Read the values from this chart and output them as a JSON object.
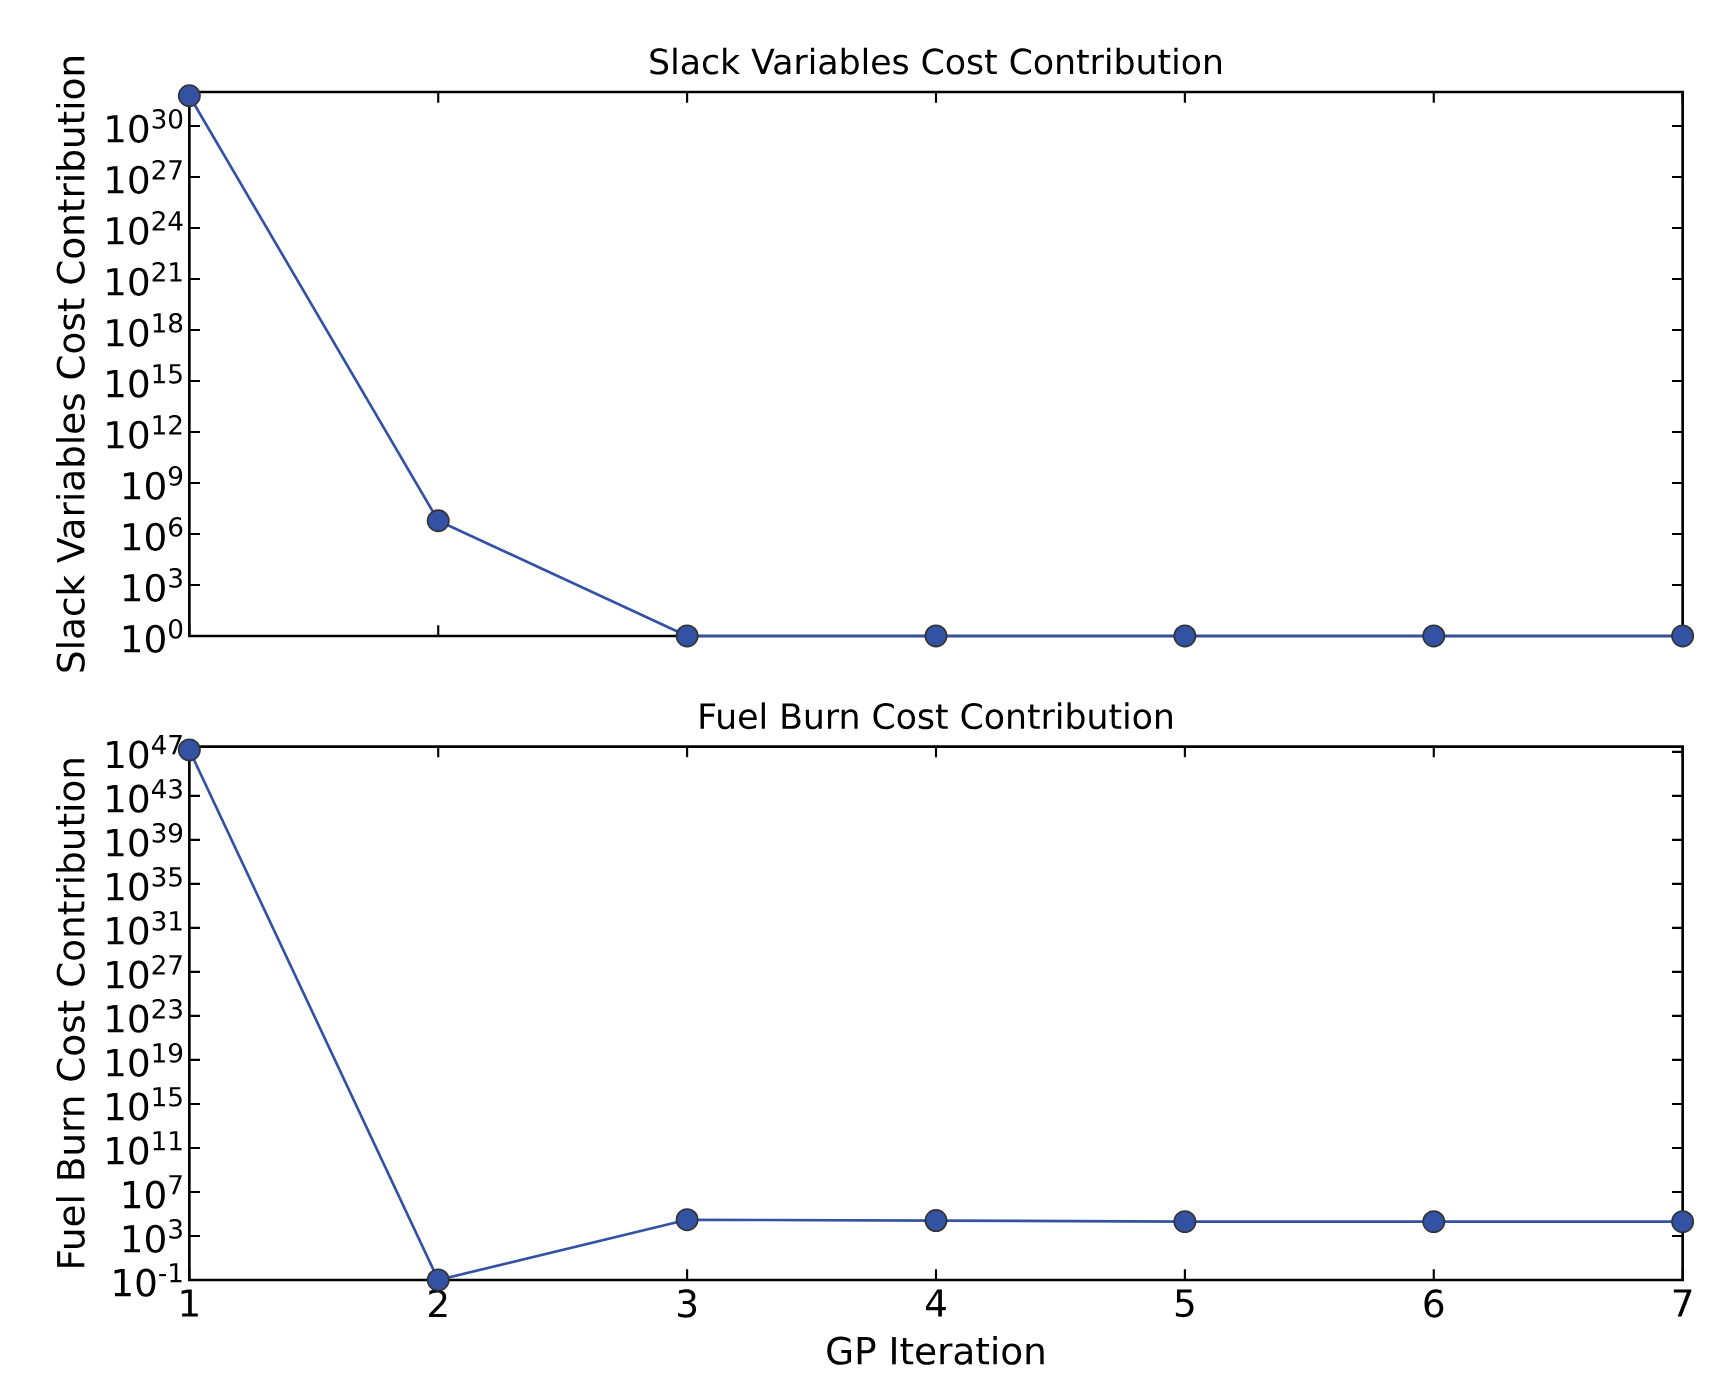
{
  "chart_data": [
    {
      "type": "line",
      "title": "Slack Variables Cost Contribution",
      "ylabel": "Slack Variables Cost Contribution",
      "x": [
        1,
        2,
        3,
        4,
        5,
        6,
        7
      ],
      "series": [
        {
          "color": "#3452a4",
          "values": [
            6e+31,
            6000000.0,
            1,
            1,
            1,
            1,
            1
          ]
        }
      ],
      "log": "y",
      "grid": false,
      "marker": "circle",
      "line_style": "solid",
      "tick_labels": "y",
      "xlim": [
        1,
        7
      ],
      "xticks": [
        1,
        2,
        3,
        4,
        5,
        6,
        7
      ],
      "ylim": [
        1,
        1e+32
      ],
      "yticks": [
        {
          "value": 1,
          "label": "10$^{0}$"
        },
        {
          "value": 1000.0,
          "label": "10$^{3}$"
        },
        {
          "value": 1000000.0,
          "label": "10$^{6}$"
        },
        {
          "value": 1000000000.0,
          "label": "10$^{9}$"
        },
        {
          "value": 1000000000000.0,
          "label": "10$^{12}$"
        },
        {
          "value": 1000000000000000.0,
          "label": "10$^{15}$"
        },
        {
          "value": 1e+18,
          "label": "10$^{18}$"
        },
        {
          "value": 1e+21,
          "label": "10$^{21}$"
        },
        {
          "value": 1e+24,
          "label": "10$^{24}$"
        },
        {
          "value": 1e+27,
          "label": "10$^{27}$"
        },
        {
          "value": 1e+30,
          "label": "10$^{30}$"
        }
      ]
    },
    {
      "type": "line",
      "title": "Fuel Burn Cost Contribution",
      "xlabel": "GP Iteration",
      "ylabel": "Fuel Burn Cost Contribution",
      "x": [
        1,
        2,
        3,
        4,
        5,
        6,
        7
      ],
      "series": [
        {
          "color": "#3452a4",
          "values": [
            1.5e+47,
            0.1,
            30000.0,
            25000.0,
            20000.0,
            20000.0,
            20000.0
          ]
        }
      ],
      "log": "y",
      "grid": false,
      "marker": "circle",
      "line_style": "solid",
      "xlim": [
        1,
        7
      ],
      "xticks": [
        1,
        2,
        3,
        4,
        5,
        6,
        7
      ],
      "ylim": [
        0.1,
        3e+47
      ],
      "yticks": [
        {
          "value": 0.1,
          "label": "10$^{-1}$"
        },
        {
          "value": 1000.0,
          "label": "10$^{3}$"
        },
        {
          "value": 10000000.0,
          "label": "10$^{7}$"
        },
        {
          "value": 100000000000.0,
          "label": "10$^{11}$"
        },
        {
          "value": 1000000000000000.0,
          "label": "10$^{15}$"
        },
        {
          "value": 1e+19,
          "label": "10$^{19}$"
        },
        {
          "value": 1e+23,
          "label": "10$^{23}$"
        },
        {
          "value": 1e+27,
          "label": "10$^{27}$"
        },
        {
          "value": 1e+31,
          "label": "10$^{31}$"
        },
        {
          "value": 1e+35,
          "label": "10$^{35}$"
        },
        {
          "value": 1e+39,
          "label": "10$^{39}$"
        },
        {
          "value": 1e+43,
          "label": "10$^{43}$"
        },
        {
          "value": 1e+47,
          "label": "10$^{47}$"
        }
      ]
    }
  ]
}
